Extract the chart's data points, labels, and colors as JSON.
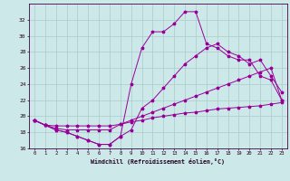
{
  "xlabel": "Windchill (Refroidissement éolien,°C)",
  "background_color": "#cce8e8",
  "grid_color": "#aacccc",
  "line_color": "#990099",
  "hours": [
    0,
    1,
    2,
    3,
    4,
    5,
    6,
    7,
    8,
    9,
    10,
    11,
    12,
    13,
    14,
    15,
    16,
    17,
    18,
    19,
    20,
    21,
    22,
    23
  ],
  "wc": [
    19.5,
    18.9,
    18.3,
    18.0,
    17.5,
    17.0,
    16.5,
    16.5,
    17.5,
    24.0,
    28.5,
    30.5,
    30.5,
    31.5,
    33.0,
    33.0,
    29.0,
    28.5,
    27.5,
    27.0,
    27.0,
    25.0,
    24.5,
    22.0
  ],
  "temp": [
    19.5,
    18.9,
    18.3,
    18.0,
    17.5,
    17.0,
    16.5,
    16.5,
    17.5,
    18.3,
    21.0,
    22.0,
    23.5,
    25.0,
    26.5,
    27.5,
    28.5,
    29.0,
    28.0,
    27.5,
    26.5,
    27.0,
    25.0,
    23.0
  ],
  "grad": [
    19.5,
    18.9,
    18.5,
    18.3,
    18.3,
    18.3,
    18.3,
    18.3,
    19.0,
    19.5,
    20.0,
    20.5,
    21.0,
    21.5,
    22.0,
    22.5,
    23.0,
    23.5,
    24.0,
    24.5,
    25.0,
    25.5,
    26.0,
    22.0
  ],
  "flat": [
    19.5,
    18.9,
    18.8,
    18.8,
    18.8,
    18.8,
    18.8,
    18.8,
    19.0,
    19.3,
    19.5,
    19.8,
    20.0,
    20.2,
    20.4,
    20.5,
    20.7,
    20.9,
    21.0,
    21.1,
    21.2,
    21.3,
    21.5,
    21.7
  ],
  "ylim": [
    16,
    34
  ],
  "xlim": [
    -0.5,
    23.5
  ],
  "yticks": [
    16,
    18,
    20,
    22,
    24,
    26,
    28,
    30,
    32
  ],
  "xticks": [
    0,
    1,
    2,
    3,
    4,
    5,
    6,
    7,
    8,
    9,
    10,
    11,
    12,
    13,
    14,
    15,
    16,
    17,
    18,
    19,
    20,
    21,
    22,
    23
  ]
}
